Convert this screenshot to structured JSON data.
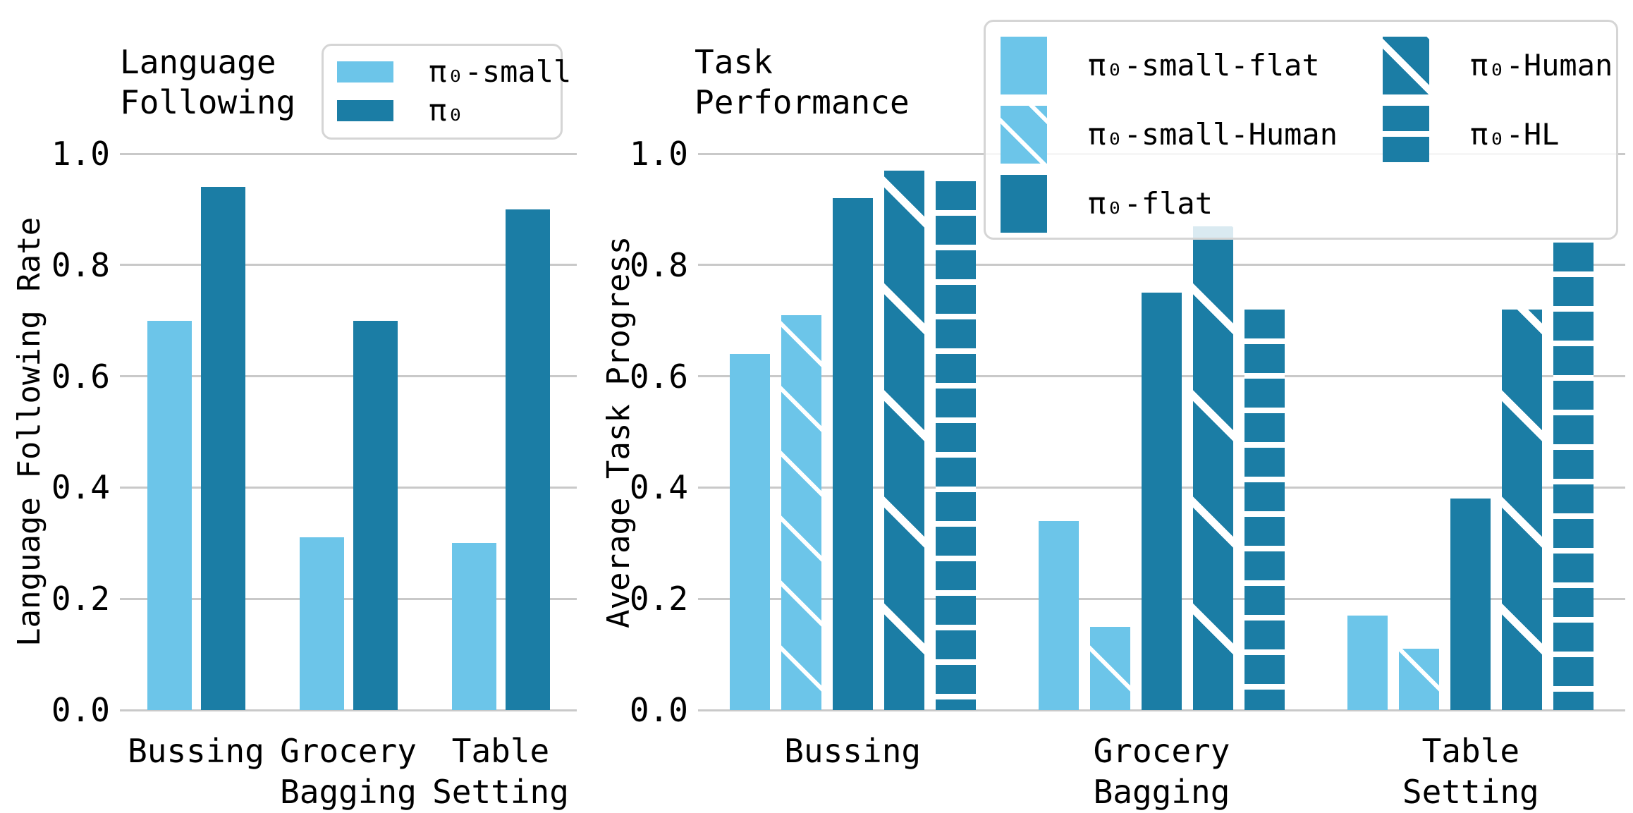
{
  "figure": {
    "background": "#ffffff"
  },
  "colors": {
    "light_blue": "#6CC5E9",
    "dark_teal": "#1B7DA5",
    "gridline": "#c9c9c9",
    "legend_border": "#d5d5d5",
    "text": "#000000"
  },
  "chart_data": [
    {
      "type": "bar",
      "title": "Language Following",
      "title_lines": [
        "Language",
        "Following"
      ],
      "ylabel": "Language Following Rate",
      "xlabel": "",
      "ylim": [
        0.0,
        1.0
      ],
      "yticks": [
        0.0,
        0.2,
        0.4,
        0.6,
        0.8,
        1.0
      ],
      "ytick_labels": [
        "0.0",
        "0.2",
        "0.4",
        "0.6",
        "0.8",
        "1.0"
      ],
      "grid": true,
      "legend_position": "upper-left-inside",
      "categories": [
        "Bussing",
        "Grocery Bagging",
        "Table Setting"
      ],
      "category_lines": [
        [
          "Bussing"
        ],
        [
          "Grocery",
          "Bagging"
        ],
        [
          "Table",
          "Setting"
        ]
      ],
      "series": [
        {
          "name": "π₀-small",
          "color": "#6CC5E9",
          "hatch": "none",
          "values": [
            0.7,
            0.31,
            0.3
          ]
        },
        {
          "name": "π₀",
          "color": "#1B7DA5",
          "hatch": "none",
          "values": [
            0.94,
            0.7,
            0.9
          ]
        }
      ]
    },
    {
      "type": "bar",
      "title": "Task Performance",
      "title_lines": [
        "Task",
        "Performance"
      ],
      "ylabel": "Average Task Progress",
      "xlabel": "",
      "ylim": [
        0.0,
        1.0
      ],
      "yticks": [
        0.0,
        0.2,
        0.4,
        0.6,
        0.8,
        1.0
      ],
      "ytick_labels": [
        "0.0",
        "0.2",
        "0.4",
        "0.6",
        "0.8",
        "1.0"
      ],
      "grid": true,
      "legend_position": "upper-right-inside",
      "legend_columns": 2,
      "categories": [
        "Bussing",
        "Grocery Bagging",
        "Table Setting"
      ],
      "category_lines": [
        [
          "Bussing"
        ],
        [
          "Grocery",
          "Bagging"
        ],
        [
          "Table",
          "Setting"
        ]
      ],
      "series": [
        {
          "name": "π₀-small-flat",
          "color": "#6CC5E9",
          "hatch": "none",
          "values": [
            0.64,
            0.34,
            0.17
          ]
        },
        {
          "name": "π₀-small-Human",
          "color": "#6CC5E9",
          "hatch": "diagonal",
          "values": [
            0.71,
            0.15,
            0.11
          ]
        },
        {
          "name": "π₀-flat",
          "color": "#1B7DA5",
          "hatch": "none",
          "values": [
            0.92,
            0.75,
            0.38
          ]
        },
        {
          "name": "π₀-Human",
          "color": "#1B7DA5",
          "hatch": "diagonal-bold",
          "values": [
            0.97,
            0.87,
            0.72
          ]
        },
        {
          "name": "π₀-HL",
          "color": "#1B7DA5",
          "hatch": "horizontal",
          "values": [
            0.95,
            0.72,
            0.84
          ]
        }
      ]
    }
  ]
}
